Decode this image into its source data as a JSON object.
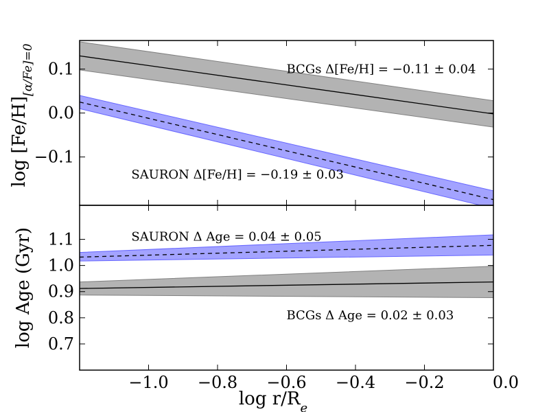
{
  "chart_data": [
    {
      "type": "line",
      "panel": "top",
      "ylabel_main": "log [Fe/H]",
      "ylabel_sub": "[α/Fe]=0",
      "xlim": [
        -1.2,
        0.0
      ],
      "ylim": [
        -0.21,
        0.165
      ],
      "yticks": [
        0.1,
        0.0,
        -0.1
      ],
      "yticklabels": [
        "0.1",
        "0.0",
        "−0.1"
      ],
      "series": [
        {
          "name": "BCGs",
          "color": "#808080",
          "line_style": "solid",
          "x": [
            -1.2,
            0.0
          ],
          "y": [
            0.13,
            -0.002
          ],
          "band_upper": [
            0.162,
            0.028
          ],
          "band_lower": [
            0.098,
            -0.032
          ]
        },
        {
          "name": "SAURON",
          "color": "#6666ff",
          "line_style": "dashed",
          "x": [
            -1.2,
            0.0
          ],
          "y": [
            0.025,
            -0.197
          ],
          "band_upper": [
            0.04,
            -0.177
          ],
          "band_lower": [
            0.01,
            -0.217
          ]
        }
      ],
      "annotations": [
        {
          "text": "BCGs Δ[Fe/H] = −0.11 ± 0.04",
          "x": -0.6,
          "y": 0.1
        },
        {
          "text": "SAURON Δ[Fe/H] = −0.19 ± 0.03",
          "x": -1.05,
          "y": -0.14
        }
      ]
    },
    {
      "type": "line",
      "panel": "bottom",
      "ylabel": "log Age (Gyr)",
      "xlabel_main": "log r/R",
      "xlabel_sub": "e",
      "xlim": [
        -1.2,
        0.0
      ],
      "ylim": [
        0.6,
        1.23
      ],
      "yticks": [
        1.1,
        1.0,
        0.9,
        0.8,
        0.7
      ],
      "yticklabels": [
        "1.1",
        "1.0",
        "0.9",
        "0.8",
        "0.7"
      ],
      "xticks": [
        -1.0,
        -0.8,
        -0.6,
        -0.4,
        -0.2,
        0.0
      ],
      "xticklabels": [
        "−1.0",
        "−0.8",
        "−0.6",
        "−0.4",
        "−0.2",
        "0.0"
      ],
      "series": [
        {
          "name": "BCGs",
          "color": "#808080",
          "line_style": "solid",
          "x": [
            -1.2,
            0.0
          ],
          "y": [
            0.912,
            0.937
          ],
          "band_upper": [
            0.937,
            0.997
          ],
          "band_lower": [
            0.887,
            0.877
          ]
        },
        {
          "name": "SAURON",
          "color": "#6666ff",
          "line_style": "dashed",
          "x": [
            -1.2,
            0.0
          ],
          "y": [
            1.032,
            1.077
          ],
          "band_upper": [
            1.05,
            1.117
          ],
          "band_lower": [
            1.017,
            1.04
          ]
        }
      ],
      "annotations": [
        {
          "text": "SAURON Δ Age = 0.04 ± 0.05",
          "x": -1.05,
          "y": 1.11
        },
        {
          "text": "BCGs Δ Age = 0.02 ± 0.03",
          "x": -0.6,
          "y": 0.81
        }
      ]
    }
  ]
}
